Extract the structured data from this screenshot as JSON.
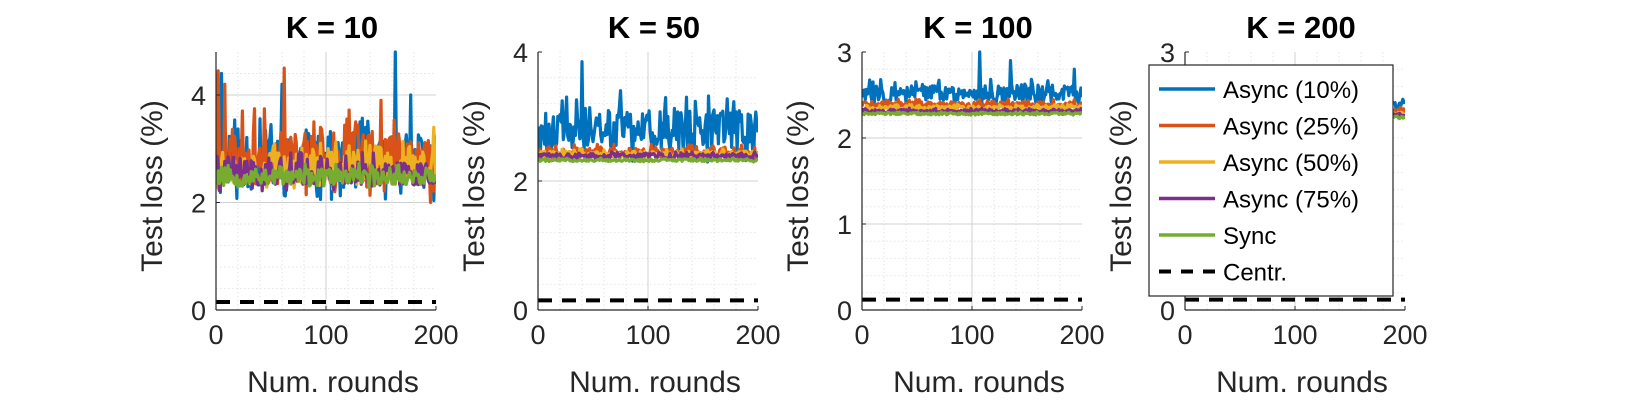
{
  "chart_data": [
    {
      "type": "line",
      "title": "K = 10",
      "xlabel": "Num. rounds",
      "ylabel": "Test loss (%)",
      "xlim": [
        0,
        200
      ],
      "ylim": [
        0,
        4.8
      ],
      "xticks": [
        0,
        100,
        200
      ],
      "yticks": [
        0,
        2,
        4
      ],
      "grid": true,
      "series": [
        {
          "name": "Async (10%)",
          "color": "#0072BD",
          "level": 2.65,
          "amp": 0.75,
          "seed": 11,
          "spikes": [
            [
              5,
              4.4
            ],
            [
              60,
              4.2
            ],
            [
              125,
              3.3
            ],
            [
              163,
              4.8
            ],
            [
              177,
              4.0
            ]
          ]
        },
        {
          "name": "Async (25%)",
          "color": "#D95319",
          "level": 2.75,
          "amp": 0.8,
          "seed": 23,
          "spikes": [
            [
              2,
              4.45
            ],
            [
              8,
              4.2
            ],
            [
              62,
              4.5
            ],
            [
              95,
              3.4
            ],
            [
              150,
              3.9
            ],
            [
              195,
              2.0
            ]
          ]
        },
        {
          "name": "Async (50%)",
          "color": "#EDB120",
          "level": 2.6,
          "amp": 0.45,
          "seed": 37,
          "spikes": [
            [
              198,
              3.4
            ]
          ]
        },
        {
          "name": "Async (75%)",
          "color": "#7E2F8E",
          "level": 2.5,
          "amp": 0.35,
          "seed": 41,
          "spikes": []
        },
        {
          "name": "Sync",
          "color": "#77AC30",
          "level": 2.45,
          "amp": 0.22,
          "seed": 53,
          "spikes": []
        },
        {
          "name": "Centr.",
          "color": "#000000",
          "level": 0.15,
          "dashed": true
        }
      ]
    },
    {
      "type": "line",
      "title": "K = 50",
      "xlabel": "Num. rounds",
      "ylabel": "Test loss (%)",
      "xlim": [
        0,
        200
      ],
      "ylim": [
        0,
        4
      ],
      "xticks": [
        0,
        100,
        200
      ],
      "yticks": [
        0,
        2,
        4
      ],
      "grid": true,
      "series": [
        {
          "name": "Async (10%)",
          "color": "#0072BD",
          "level": 2.7,
          "amp": 0.5,
          "seed": 61,
          "spikes": [
            [
              40,
              3.85
            ],
            [
              75,
              3.4
            ],
            [
              135,
              3.3
            ],
            [
              160,
              3.1
            ]
          ]
        },
        {
          "name": "Async (25%)",
          "color": "#D95319",
          "level": 2.42,
          "amp": 0.12,
          "seed": 67,
          "spikes": []
        },
        {
          "name": "Async (50%)",
          "color": "#EDB120",
          "level": 2.4,
          "amp": 0.08,
          "seed": 71,
          "spikes": []
        },
        {
          "name": "Async (75%)",
          "color": "#7E2F8E",
          "level": 2.38,
          "amp": 0.06,
          "seed": 73,
          "spikes": []
        },
        {
          "name": "Sync",
          "color": "#77AC30",
          "level": 2.32,
          "amp": 0.03,
          "seed": 79,
          "spikes": []
        },
        {
          "name": "Centr.",
          "color": "#000000",
          "level": 0.15,
          "dashed": true
        }
      ]
    },
    {
      "type": "line",
      "title": "K = 100",
      "xlabel": "Num. rounds",
      "ylabel": "Test loss (%)",
      "xlim": [
        0,
        200
      ],
      "ylim": [
        0,
        3
      ],
      "xticks": [
        0,
        100,
        200
      ],
      "yticks": [
        0,
        1,
        2,
        3
      ],
      "grid": true,
      "series": [
        {
          "name": "Async (10%)",
          "color": "#0072BD",
          "level": 2.5,
          "amp": 0.15,
          "seed": 83,
          "spikes": [
            [
              107,
              3.0
            ],
            [
              135,
              2.9
            ],
            [
              193,
              2.8
            ]
          ]
        },
        {
          "name": "Async (25%)",
          "color": "#D95319",
          "level": 2.38,
          "amp": 0.06,
          "seed": 89,
          "spikes": []
        },
        {
          "name": "Async (50%)",
          "color": "#EDB120",
          "level": 2.34,
          "amp": 0.04,
          "seed": 97,
          "spikes": []
        },
        {
          "name": "Async (75%)",
          "color": "#7E2F8E",
          "level": 2.31,
          "amp": 0.03,
          "seed": 101,
          "spikes": []
        },
        {
          "name": "Sync",
          "color": "#77AC30",
          "level": 2.28,
          "amp": 0.02,
          "seed": 103,
          "spikes": []
        },
        {
          "name": "Centr.",
          "color": "#000000",
          "level": 0.12,
          "dashed": true
        }
      ]
    },
    {
      "type": "line",
      "title": "K = 200",
      "xlabel": "Num. rounds",
      "ylabel": "Test loss (%)",
      "xlim": [
        0,
        200
      ],
      "ylim": [
        0,
        3
      ],
      "xticks": [
        0,
        100,
        200
      ],
      "yticks": [
        0,
        3
      ],
      "grid": true,
      "legend_position": "inside-overlapping-left",
      "series": [
        {
          "name": "Async (10%)",
          "color": "#0072BD",
          "level": 2.35,
          "amp": 0.08,
          "seed": 107,
          "spikes": [
            [
              198,
              2.45
            ]
          ]
        },
        {
          "name": "Async (25%)",
          "color": "#D95319",
          "level": 2.3,
          "amp": 0.05,
          "seed": 109,
          "spikes": []
        },
        {
          "name": "Async (50%)",
          "color": "#EDB120",
          "level": 2.28,
          "amp": 0.04,
          "seed": 113,
          "spikes": []
        },
        {
          "name": "Async (75%)",
          "color": "#7E2F8E",
          "level": 2.26,
          "amp": 0.03,
          "seed": 127,
          "spikes": []
        },
        {
          "name": "Sync",
          "color": "#77AC30",
          "level": 2.24,
          "amp": 0.02,
          "seed": 131,
          "spikes": []
        },
        {
          "name": "Centr.",
          "color": "#000000",
          "level": 0.12,
          "dashed": true
        }
      ]
    }
  ],
  "legend": {
    "entries": [
      {
        "label": "Async (10%)",
        "color": "#0072BD",
        "dashed": false
      },
      {
        "label": "Async (25%)",
        "color": "#D95319",
        "dashed": false
      },
      {
        "label": "Async (50%)",
        "color": "#EDB120",
        "dashed": false
      },
      {
        "label": "Async (75%)",
        "color": "#7E2F8E",
        "dashed": false
      },
      {
        "label": "Sync",
        "color": "#77AC30",
        "dashed": false
      },
      {
        "label": "Centr.",
        "color": "#000000",
        "dashed": true
      }
    ]
  }
}
